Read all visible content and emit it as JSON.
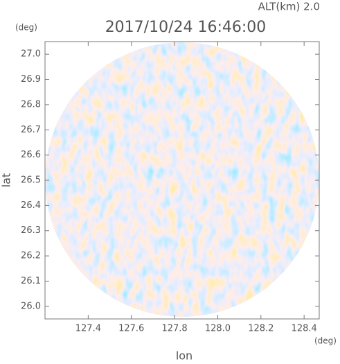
{
  "chart_data": {
    "type": "radar-field",
    "title": "2017/10/24 16:46:00",
    "altitude_label": "ALT(km) 2.0",
    "x_label": "lon",
    "y_label": "lat",
    "x_unit": "(deg)",
    "y_unit": "(deg)",
    "xlim": [
      127.2,
      128.47
    ],
    "ylim": [
      25.95,
      27.05
    ],
    "xticks": [
      127.4,
      127.6,
      127.8,
      {
        "value": 128.0,
        "label": "128.0"
      },
      128.2,
      128.4
    ],
    "yticks": [
      {
        "value": 26.0,
        "label": "26.0"
      },
      26.1,
      26.2,
      26.3,
      26.4,
      26.5,
      26.6,
      26.7,
      26.8,
      26.9,
      {
        "value": 27.0,
        "label": "27.0"
      }
    ]
  }
}
